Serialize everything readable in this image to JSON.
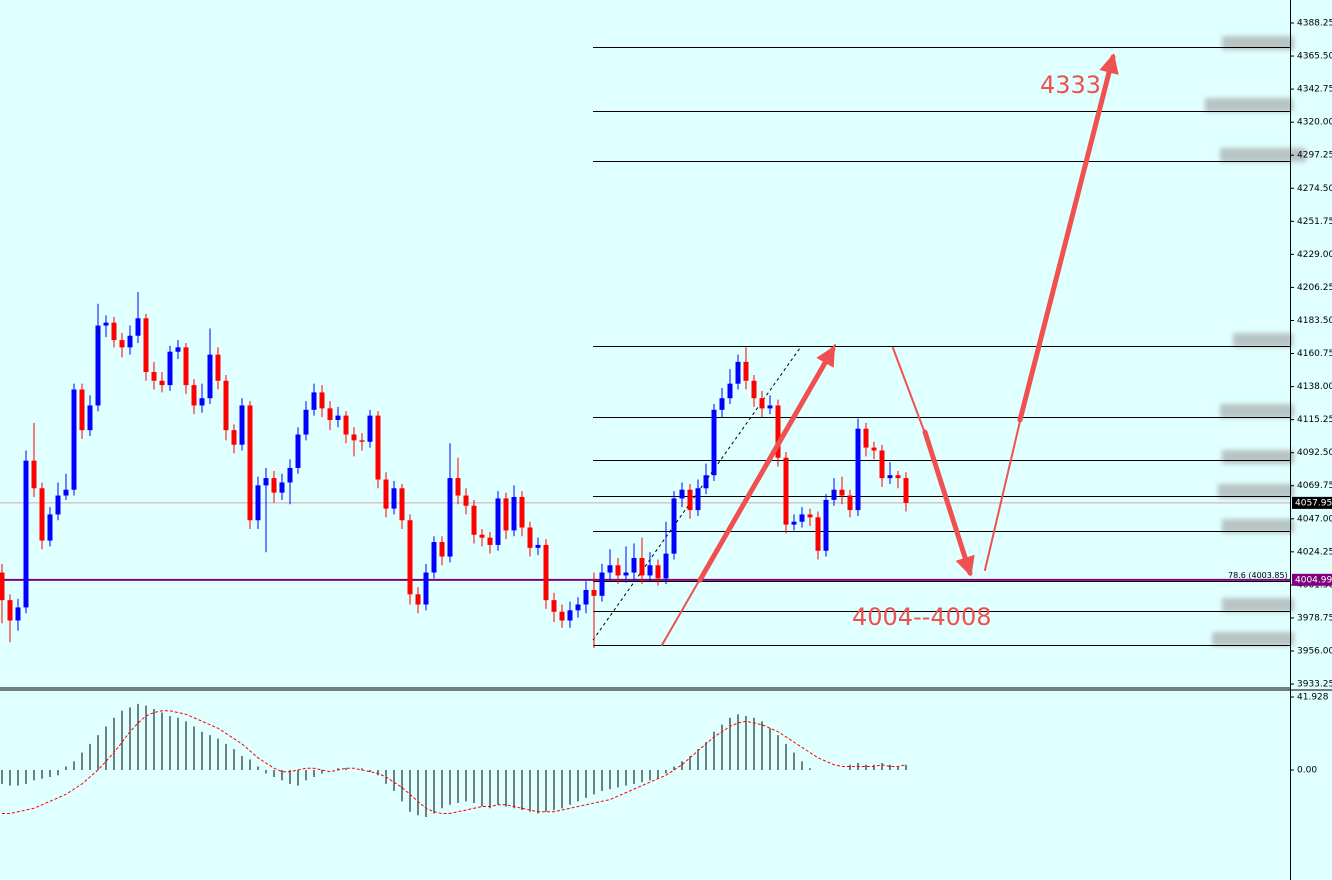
{
  "chart_data": [
    {
      "type": "candlestick",
      "up_color": "#0000ff",
      "down_color": "#ff0000",
      "open": [
        4010,
        3991,
        3977,
        3986,
        4087,
        4068,
        4032,
        4050,
        4063,
        4067,
        4136,
        4108,
        4125,
        4180,
        4182,
        4170,
        4165,
        4173,
        4185,
        4148,
        4142,
        4139,
        4162,
        4165,
        4139,
        4125,
        4130,
        4160,
        4142,
        4108,
        4098,
        4125,
        4046,
        4070,
        4075,
        4065,
        4072,
        4082,
        4105,
        4122,
        4134,
        4123,
        4115,
        4118,
        4105,
        4101,
        4100,
        4118,
        4074,
        4054,
        4068,
        4046,
        3995,
        3988,
        4010,
        4031,
        4021,
        4075,
        4063,
        4056,
        4036,
        4034,
        4029,
        4061,
        4039,
        4062,
        4041,
        4027,
        4029,
        3991,
        3983,
        3977,
        3984,
        3988,
        3998,
        3994,
        4010,
        4015,
        4008,
        4010,
        4020,
        4008,
        4015,
        4006,
        4023,
        4061,
        4067,
        4053,
        4068,
        4077,
        4122,
        4130,
        4140,
        4155,
        4142,
        4130,
        4123,
        4125,
        4089,
        4043,
        4045,
        4050,
        4048,
        4025,
        4060,
        4067,
        4063,
        4053,
        4109,
        4096,
        4094,
        4075,
        4077,
        4075
      ],
      "high": [
        4016,
        3995,
        3992,
        4094,
        4113,
        4072,
        4055,
        4072,
        4078,
        4140,
        4140,
        4132,
        4195,
        4187,
        4186,
        4175,
        4180,
        4203,
        4188,
        4155,
        4148,
        4166,
        4170,
        4168,
        4143,
        4140,
        4178,
        4165,
        4146,
        4112,
        4130,
        4128,
        4076,
        4082,
        4080,
        4078,
        4088,
        4110,
        4128,
        4140,
        4139,
        4128,
        4124,
        4121,
        4110,
        4106,
        4122,
        4121,
        4079,
        4073,
        4071,
        4050,
        4000,
        4016,
        4035,
        4035,
        4099,
        4089,
        4068,
        4060,
        4040,
        4038,
        4066,
        4065,
        4070,
        4066,
        4045,
        4034,
        4033,
        3996,
        3988,
        3990,
        3993,
        4004,
        4010,
        4016,
        4026,
        4020,
        4028,
        4030,
        4034,
        4024,
        4019,
        4045,
        4066,
        4072,
        4071,
        4074,
        4085,
        4126,
        4137,
        4150,
        4160,
        4165,
        4146,
        4135,
        4132,
        4129,
        4093,
        4050,
        4055,
        4054,
        4052,
        4064,
        4075,
        4076,
        4067,
        4116,
        4113,
        4100,
        4098,
        4086,
        4080,
        4079
      ],
      "low": [
        3975,
        3962,
        3970,
        3982,
        4062,
        4026,
        4028,
        4046,
        4060,
        4063,
        4102,
        4104,
        4121,
        4172,
        4165,
        4158,
        4160,
        4168,
        4142,
        4136,
        4134,
        4135,
        4157,
        4133,
        4119,
        4120,
        4126,
        4136,
        4101,
        4092,
        4094,
        4040,
        4040,
        4024,
        4058,
        4060,
        4057,
        4078,
        4101,
        4118,
        4117,
        4108,
        4110,
        4099,
        4090,
        4094,
        4096,
        4068,
        4048,
        4050,
        4040,
        3988,
        3982,
        3984,
        4006,
        4015,
        4017,
        4057,
        4050,
        4030,
        4028,
        4023,
        4025,
        4033,
        4035,
        4035,
        4021,
        4022,
        3985,
        3976,
        3972,
        3972,
        3979,
        3982,
        3958,
        3990,
        4005,
        4002,
        4003,
        4005,
        4002,
        4004,
        4001,
        4002,
        4019,
        4055,
        4047,
        4049,
        4064,
        4073,
        4117,
        4126,
        4136,
        4136,
        4124,
        4117,
        4119,
        4083,
        4037,
        4039,
        4041,
        4042,
        4019,
        4021,
        4056,
        4057,
        4048,
        4049,
        4090,
        4088,
        4069,
        4071,
        4068,
        4052
      ],
      "close": [
        3991,
        3977,
        3986,
        4087,
        4068,
        4032,
        4050,
        4063,
        4067,
        4136,
        4108,
        4125,
        4180,
        4182,
        4170,
        4165,
        4173,
        4185,
        4148,
        4142,
        4139,
        4162,
        4165,
        4139,
        4125,
        4130,
        4160,
        4142,
        4108,
        4098,
        4125,
        4046,
        4070,
        4075,
        4065,
        4072,
        4082,
        4105,
        4122,
        4134,
        4123,
        4115,
        4118,
        4105,
        4101,
        4100,
        4118,
        4074,
        4054,
        4068,
        4046,
        3995,
        3988,
        4010,
        4031,
        4021,
        4075,
        4063,
        4056,
        4036,
        4034,
        4029,
        4061,
        4039,
        4062,
        4041,
        4027,
        4029,
        3991,
        3983,
        3977,
        3984,
        3988,
        3998,
        3994,
        4010,
        4015,
        4008,
        4010,
        4020,
        4008,
        4015,
        4006,
        4023,
        4061,
        4067,
        4053,
        4068,
        4077,
        4122,
        4130,
        4140,
        4155,
        4142,
        4130,
        4123,
        4125,
        4089,
        4043,
        4045,
        4050,
        4048,
        4025,
        4060,
        4067,
        4063,
        4053,
        4109,
        4096,
        4094,
        4075,
        4077,
        4075,
        4058
      ],
      "ylim": [
        3930.53,
        4404.08
      ],
      "yticks": [
        3933.25,
        {
          "value": 3956,
          "label": "3956.00"
        },
        3978.75,
        {
          "value": 4001.5,
          "label": "4001.50"
        },
        4024.25,
        {
          "value": 4047,
          "label": "4047.00"
        },
        4069.75,
        {
          "value": 4092.5,
          "label": "4092.50"
        },
        4115.25,
        {
          "value": 4138,
          "label": "4138.00"
        },
        4160.75,
        {
          "value": 4183.5,
          "label": "4183.50"
        },
        4206.25,
        {
          "value": 4229,
          "label": "4229.00"
        },
        4251.75,
        {
          "value": 4274.5,
          "label": "4274.50"
        },
        4297.25,
        {
          "value": 4320,
          "label": "4320.00"
        },
        4342.75,
        {
          "value": 4365.5,
          "label": "4365.50"
        },
        4388.25
      ],
      "fib_levels": [
        4371.7,
        4327.7,
        4293.3,
        4165.9,
        4117.0,
        4087.5,
        4062.7,
        4038.6,
        4003.85,
        3983.5,
        3960.1
      ],
      "fib_label": "78.6 (4003.85)",
      "last_price": 4057.95,
      "marker_line": 4004.99,
      "marker_color": "#800080",
      "annotations": [
        "4333",
        "4004--4008"
      ]
    },
    {
      "type": "macd",
      "histogram": [
        -8,
        -9,
        -9,
        -8,
        -6,
        -5,
        -4,
        -3,
        2,
        5,
        10,
        15,
        20,
        25,
        30,
        34,
        36,
        38,
        37,
        35,
        33,
        31,
        30,
        28,
        25,
        22,
        20,
        18,
        15,
        12,
        8,
        6,
        2,
        -2,
        -4,
        -6,
        -8,
        -9,
        -6,
        -4,
        -2,
        0,
        1,
        1,
        0,
        1,
        -1,
        -3,
        -8,
        -12,
        -18,
        -24,
        -26,
        -27,
        -25,
        -22,
        -20,
        -19,
        -18,
        -19,
        -21,
        -22,
        -20,
        -21,
        -22,
        -23,
        -24,
        -25,
        -24,
        -23,
        -22,
        -20,
        -18,
        -16,
        -14,
        -12,
        -11,
        -10,
        -9,
        -8,
        -7,
        -6,
        -5,
        -2,
        2,
        5,
        8,
        12,
        16,
        22,
        26,
        30,
        32,
        31,
        30,
        28,
        24,
        20,
        15,
        10,
        5,
        1,
        0,
        0,
        0,
        0,
        3,
        4,
        3,
        3,
        4,
        3,
        2,
        3
      ],
      "signal": [
        -25,
        -25,
        -24,
        -23,
        -22,
        -20,
        -18,
        -16,
        -14,
        -11,
        -8,
        -4,
        0,
        5,
        10,
        16,
        22,
        27,
        31,
        33,
        34,
        34,
        33,
        32,
        30,
        28,
        26,
        24,
        21,
        18,
        15,
        11,
        7,
        4,
        1,
        -1,
        -1,
        0,
        1,
        1,
        0,
        -1,
        0,
        1,
        1,
        0,
        -1,
        -2,
        -4,
        -7,
        -10,
        -14,
        -18,
        -22,
        -24,
        -25,
        -25,
        -24,
        -23,
        -22,
        -21,
        -21,
        -20,
        -20,
        -21,
        -22,
        -23,
        -24,
        -24,
        -24,
        -23,
        -22,
        -21,
        -20,
        -19,
        -18,
        -17,
        -15,
        -13,
        -11,
        -9,
        -7,
        -5,
        -3,
        0,
        3,
        7,
        11,
        15,
        19,
        22,
        25,
        27,
        28,
        27,
        26,
        24,
        22,
        19,
        16,
        13,
        10,
        7,
        5,
        3,
        2,
        2,
        2,
        2,
        2,
        3,
        2,
        2,
        3
      ],
      "histogram_color": "#000000",
      "signal_color": "#ff0000",
      "ylim": [
        -63.2,
        45.95
      ],
      "yticks": [
        {
          "value": 0,
          "label": "0.00"
        },
        41.928
      ]
    }
  ]
}
